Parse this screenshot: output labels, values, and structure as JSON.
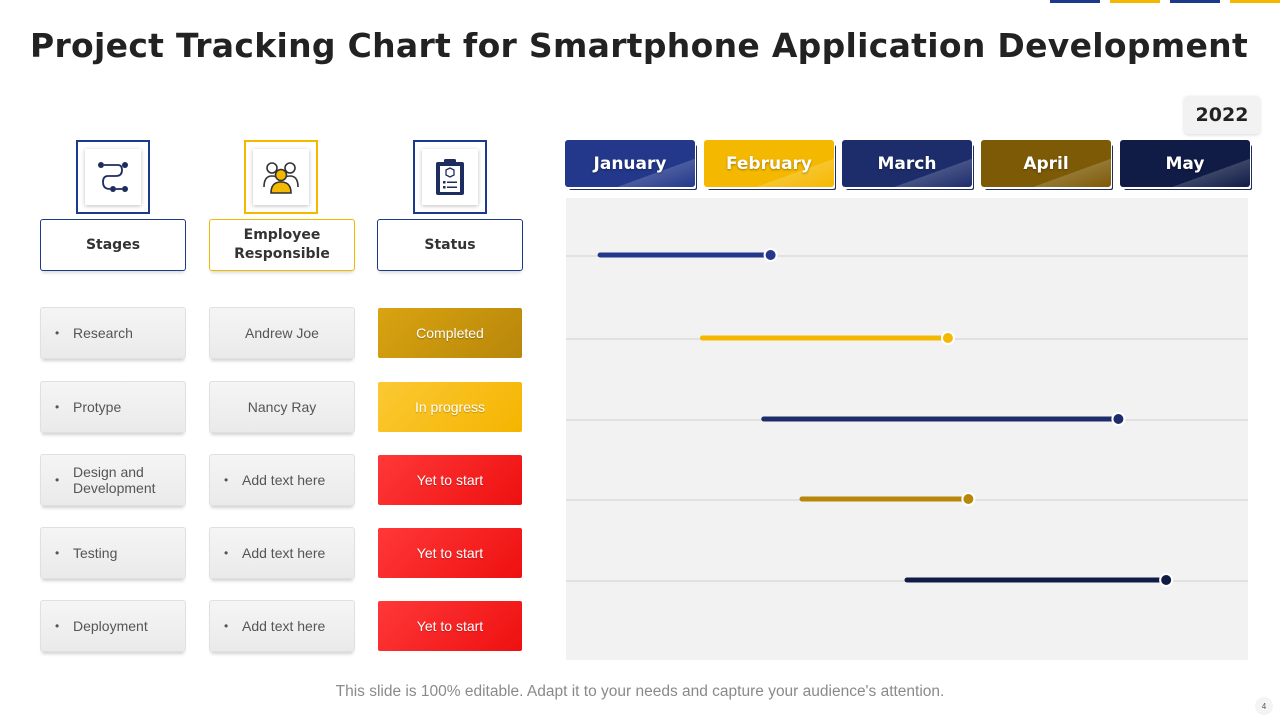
{
  "slide": {
    "title": "Project Tracking Chart for Smartphone Application Development",
    "year": "2022",
    "footer": "This slide is 100% editable. Adapt it to your needs and capture your audience's attention.",
    "page_number": "4",
    "accent_colors": [
      "#1d3a8a",
      "#f5b800",
      "#1d3a8a",
      "#f5b800"
    ]
  },
  "icons": {
    "stages": "process-flow-icon",
    "employee": "team-people-icon",
    "status": "clipboard-checklist-icon"
  },
  "headers": {
    "stages": "Stages",
    "employee": "Employee Responsible",
    "status": "Status"
  },
  "rows": [
    {
      "stage": "Research",
      "employee": "Andrew Joe",
      "employee_bullet": false,
      "status": "Completed",
      "status_type": "completed"
    },
    {
      "stage": "Protype",
      "employee": "Nancy Ray",
      "employee_bullet": false,
      "status": "In progress",
      "status_type": "progress"
    },
    {
      "stage": "Design and Development",
      "employee": "Add text here",
      "employee_bullet": true,
      "status": "Yet to start",
      "status_type": "yet"
    },
    {
      "stage": "Testing",
      "employee": "Add text here",
      "employee_bullet": true,
      "status": "Yet to start",
      "status_type": "yet"
    },
    {
      "stage": "Deployment",
      "employee": "Add text here",
      "employee_bullet": true,
      "status": "Yet to start",
      "status_type": "yet"
    }
  ],
  "months": [
    {
      "label": "January",
      "color": "#23388a"
    },
    {
      "label": "February",
      "color": "#f5b800"
    },
    {
      "label": "March",
      "color": "#1d2d6b"
    },
    {
      "label": "April",
      "color": "#7d5a06"
    },
    {
      "label": "May",
      "color": "#101c46"
    }
  ],
  "chart_data": {
    "type": "gantt",
    "title": "Project Tracking Chart for Smartphone Application Development",
    "x_axis": "month (0 = start of January, 5 = end of May)",
    "xlim": [
      0,
      5
    ],
    "categories": [
      "January",
      "February",
      "March",
      "April",
      "May"
    ],
    "tasks": [
      {
        "name": "Research",
        "start": 0.25,
        "end": 1.5,
        "color": "#23388a"
      },
      {
        "name": "Protype",
        "start": 1.0,
        "end": 2.8,
        "color": "#f5b800"
      },
      {
        "name": "Design and Development",
        "start": 1.45,
        "end": 4.05,
        "color": "#1d2d6b"
      },
      {
        "name": "Testing",
        "start": 1.73,
        "end": 2.95,
        "color": "#b8860b"
      },
      {
        "name": "Deployment",
        "start": 2.5,
        "end": 4.4,
        "color": "#101c46"
      }
    ]
  }
}
